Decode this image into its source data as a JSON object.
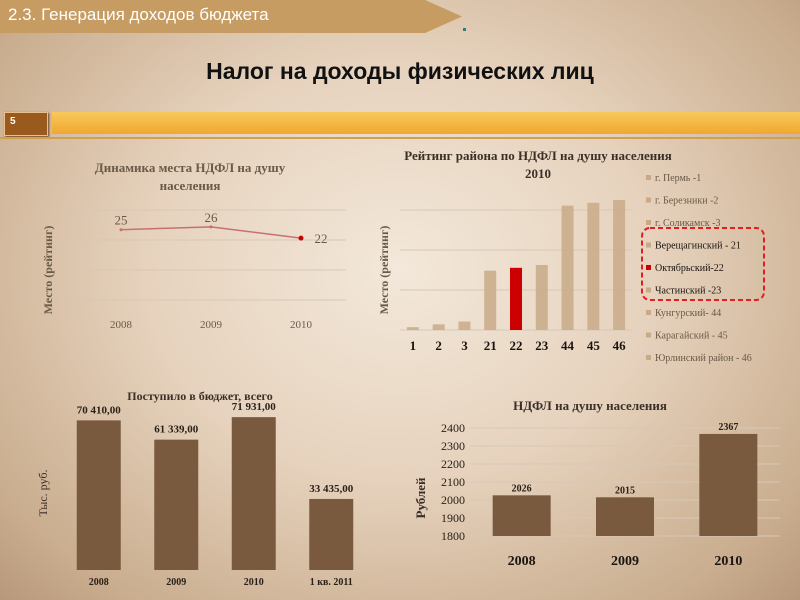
{
  "header": {
    "section_label": "2.3. Генерация доходов бюджета"
  },
  "page_title": "Налог на доходы физических лиц",
  "page_number": "5",
  "charts": {
    "dyn": {
      "title_line1": "Динамика места НДФЛ на душу",
      "title_line2": "населения",
      "ylabel": "Место (рейтинг)"
    },
    "rating": {
      "title_line1": "Рейтинг района по НДФЛ на душу населения",
      "title_line2": "2010",
      "ylabel": "Место (рейтинг)"
    },
    "budget": {
      "title": "Поступило в бюджет, всего",
      "ylabel": "Тыс. руб."
    },
    "ndfl": {
      "title": "НДФЛ на душу населения",
      "ylabel": "Рублей"
    }
  },
  "chart_data": [
    {
      "type": "line",
      "title": "Динамика места НДФЛ на душу населения",
      "ylabel": "Место (рейтинг)",
      "categories": [
        "2008",
        "2009",
        "2010"
      ],
      "values": [
        25,
        26,
        22
      ],
      "data_labels": [
        "25",
        "26",
        "22"
      ],
      "line_color": "#c87070",
      "highlight_color": "#cc0000"
    },
    {
      "type": "bar",
      "title": "Рейтинг района по НДФЛ на душу населения 2010",
      "ylabel": "Место (рейтинг)",
      "categories": [
        "1",
        "2",
        "3",
        "21",
        "22",
        "23",
        "44",
        "45",
        "46"
      ],
      "values": [
        1,
        2,
        3,
        21,
        22,
        23,
        44,
        45,
        46
      ],
      "highlight_index": 4,
      "bar_color": "#c8aa88",
      "highlight_color": "#cc0000",
      "legend": [
        "г. Пермь -1",
        "г. Березники -2",
        "г. Соликамск -3",
        "Верещагинский - 21",
        "Октябрьский-22",
        "Частинский -23",
        "Кунгурский- 44",
        "Карагайский - 45",
        "Юрлинский район - 46"
      ],
      "legend_highlight": [
        3,
        4,
        5
      ]
    },
    {
      "type": "bar",
      "title": "Поступило в бюджет, всего",
      "ylabel": "Тыс. руб.",
      "categories": [
        "2008",
        "2009",
        "2010",
        "1 кв. 2011"
      ],
      "values": [
        70410.0,
        61339.0,
        71931.0,
        33435.0
      ],
      "data_labels": [
        "70 410,00",
        "61 339,00",
        "71 931,00",
        "33 435,00"
      ],
      "bar_color": "#7a5a3e"
    },
    {
      "type": "bar",
      "title": "НДФЛ на душу населения",
      "ylabel": "Рублей",
      "categories": [
        "2008",
        "2009",
        "2010"
      ],
      "values": [
        2026,
        2015,
        2367
      ],
      "data_labels": [
        "2026",
        "2015",
        "2367"
      ],
      "yticks": [
        "1800",
        "1900",
        "2000",
        "2100",
        "2200",
        "2300",
        "2400"
      ],
      "ylim": [
        1800,
        2400
      ],
      "bar_color": "#7a5a3e"
    }
  ]
}
